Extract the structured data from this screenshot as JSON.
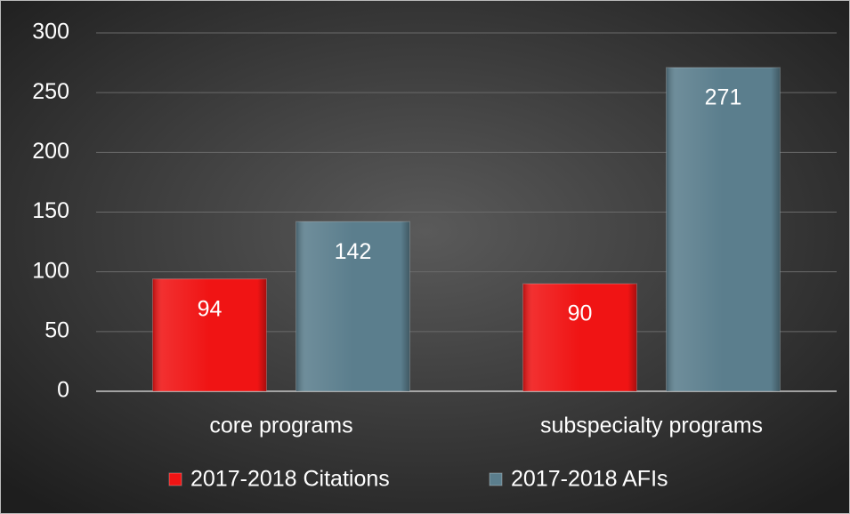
{
  "chart_data": {
    "type": "bar",
    "categories": [
      "core programs",
      "subspecialty programs"
    ],
    "series": [
      {
        "name": "2017-2018 Citations",
        "color": "#f01414",
        "values": [
          94,
          90
        ]
      },
      {
        "name": "2017-2018 AFIs",
        "color": "#5b7e8d",
        "values": [
          142,
          271
        ]
      }
    ],
    "ylim": [
      0,
      300
    ],
    "yticks": [
      0,
      50,
      100,
      150,
      200,
      250,
      300
    ],
    "grid": true,
    "legend": "bottom"
  }
}
